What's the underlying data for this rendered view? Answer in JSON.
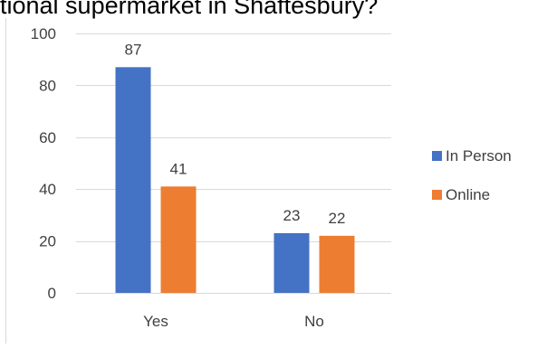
{
  "title": "tional supermarket in Shaftesbury?",
  "chart_data": {
    "type": "bar",
    "title": "tional supermarket in Shaftesbury?",
    "categories": [
      "Yes",
      "No"
    ],
    "series": [
      {
        "name": "In Person",
        "values": [
          87,
          23
        ],
        "color": "#4472c4"
      },
      {
        "name": "Online",
        "values": [
          41,
          22
        ],
        "color": "#ed7d31"
      }
    ],
    "ylim": [
      0,
      100
    ],
    "yticks": [
      0,
      20,
      40,
      60,
      80,
      100
    ],
    "grid": true,
    "legend": "right",
    "data_labels": true
  }
}
